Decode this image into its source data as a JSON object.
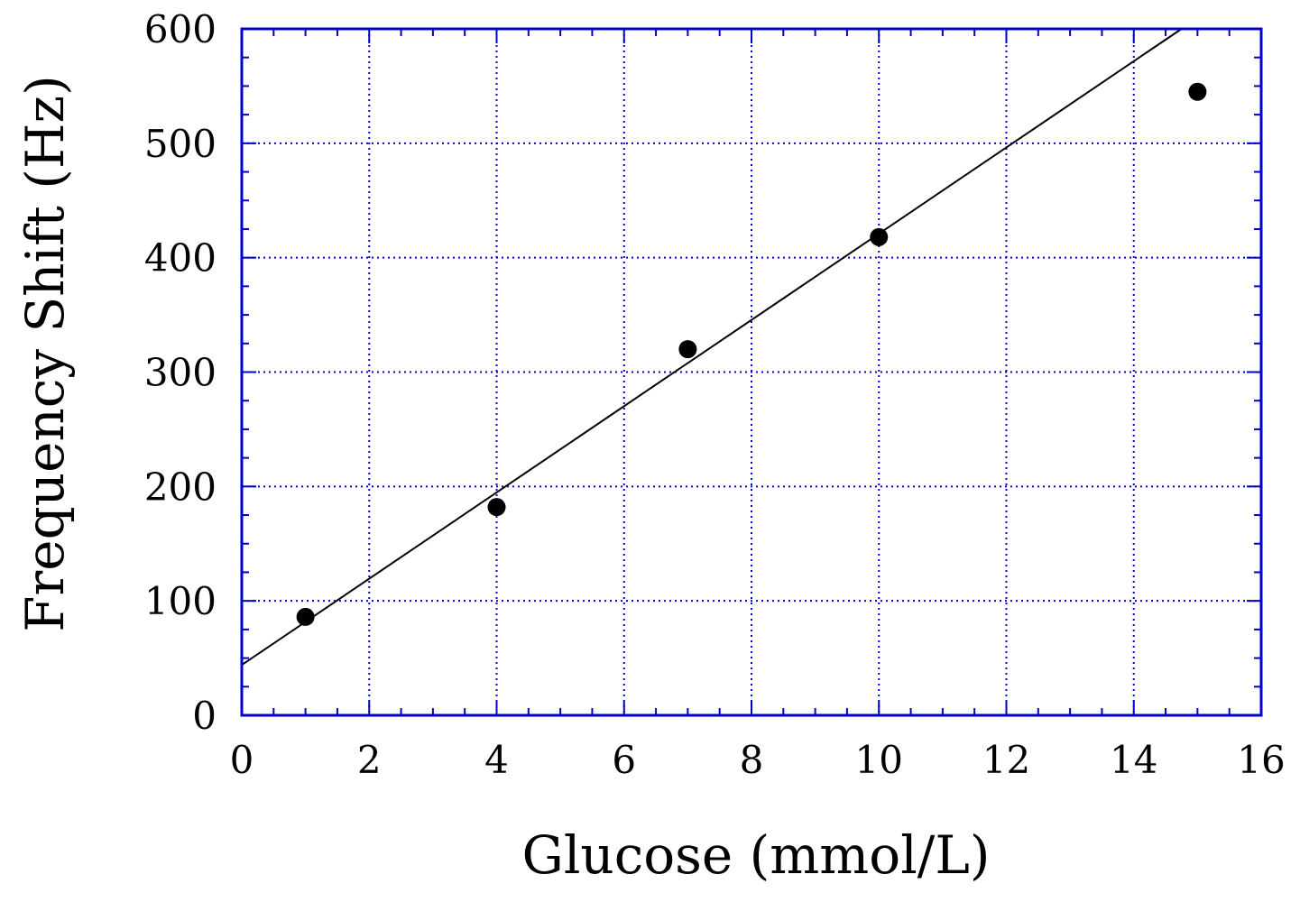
{
  "chart_data": {
    "type": "scatter",
    "xlabel": "Glucose (mmol/L)",
    "ylabel": "Frequency Shift (Hz)",
    "xlim": [
      0,
      16
    ],
    "ylim": [
      0,
      600
    ],
    "x_ticks": [
      0,
      2,
      4,
      6,
      8,
      10,
      12,
      14,
      16
    ],
    "y_ticks": [
      0,
      100,
      200,
      300,
      400,
      500,
      600
    ],
    "x_tick_labels": [
      "0",
      "2",
      "4",
      "6",
      "8",
      "10",
      "12",
      "14",
      "16"
    ],
    "y_tick_labels": [
      "0",
      "100",
      "200",
      "300",
      "400",
      "500",
      "600"
    ],
    "x_minor_step": 0.5,
    "y_minor_step": 25,
    "grid": true,
    "grid_color": "#0000cc",
    "frame_color": "#0000cc",
    "marker_color": "#000000",
    "line_color": "#000000",
    "series": [
      {
        "x": [
          1,
          4,
          7,
          10,
          15
        ],
        "y": [
          86,
          182,
          320,
          418,
          545
        ]
      }
    ],
    "fit_line": {
      "x": [
        0,
        14.75
      ],
      "y": [
        44,
        600
      ]
    }
  }
}
